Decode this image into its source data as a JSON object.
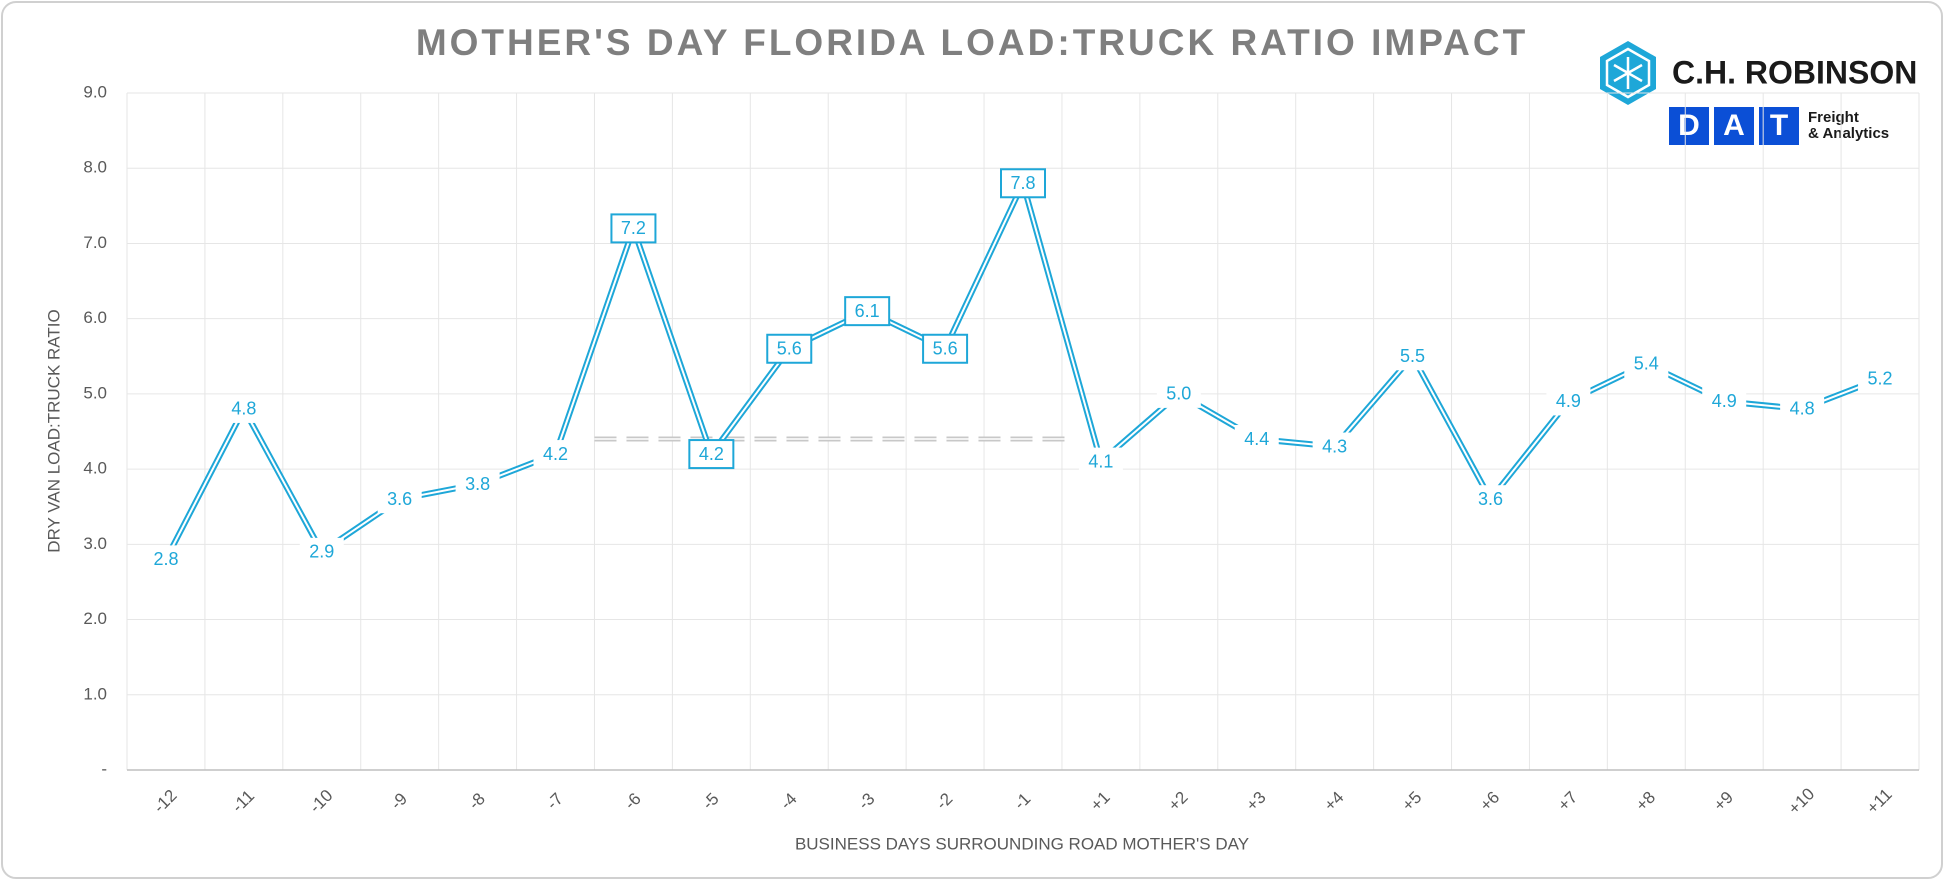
{
  "chart_data": {
    "type": "line",
    "title": "MOTHER'S DAY FLORIDA LOAD:TRUCK RATIO IMPACT",
    "x_label": "BUSINESS DAYS SURROUNDING ROAD MOTHER'S DAY",
    "y_label": "DRY VAN LOAD:TRUCK RATIO",
    "categories": [
      "-12",
      "-11",
      "-10",
      "-9",
      "-8",
      "-7",
      "-6",
      "-5",
      "-4",
      "-3",
      "-2",
      "-1",
      "+1",
      "+2",
      "+3",
      "+4",
      "+5",
      "+6",
      "+7",
      "+8",
      "+9",
      "+10",
      "+11"
    ],
    "series": [
      {
        "name": "Dry Van Load:Truck Ratio",
        "color": "#1ea7d8",
        "values": [
          2.8,
          4.8,
          2.9,
          3.6,
          3.8,
          4.2,
          7.2,
          4.2,
          5.6,
          6.1,
          5.6,
          7.8,
          4.1,
          5.0,
          4.4,
          4.3,
          5.5,
          3.6,
          4.9,
          5.4,
          4.9,
          4.8,
          5.2
        ],
        "value_labels": [
          "2.8",
          "4.8",
          "2.9",
          "3.6",
          "3.8",
          "4.2",
          "7.2",
          "4.2",
          "5.6",
          "6.1",
          "5.6",
          "7.8",
          "4.1",
          "5.0",
          "4.4",
          "4.3",
          "5.5",
          "3.6",
          "4.9",
          "5.4",
          "4.9",
          "4.8",
          "5.2"
        ]
      }
    ],
    "boxed_categories": [
      "-6",
      "-5",
      "-4",
      "-3",
      "-2",
      "-1"
    ],
    "reference_line": {
      "value": 4.4,
      "color": "#c8c8c8",
      "from": "-6",
      "to": "-1"
    },
    "ylim": [
      0,
      9
    ],
    "yticks": [
      {
        "value": 0,
        "label": "-"
      },
      {
        "value": 1,
        "label": "1.0"
      },
      {
        "value": 2,
        "label": "2.0"
      },
      {
        "value": 3,
        "label": "3.0"
      },
      {
        "value": 4,
        "label": "4.0"
      },
      {
        "value": 5,
        "label": "5.0"
      },
      {
        "value": 6,
        "label": "6.0"
      },
      {
        "value": 7,
        "label": "7.0"
      },
      {
        "value": 8,
        "label": "8.0"
      },
      {
        "value": 9,
        "label": "9.0"
      }
    ],
    "grid": true,
    "logos": {
      "primary": "C.H. ROBINSON",
      "secondary": [
        "D",
        "A",
        "T"
      ],
      "secondary_tagline": [
        "Freight",
        "& Analytics"
      ]
    }
  }
}
